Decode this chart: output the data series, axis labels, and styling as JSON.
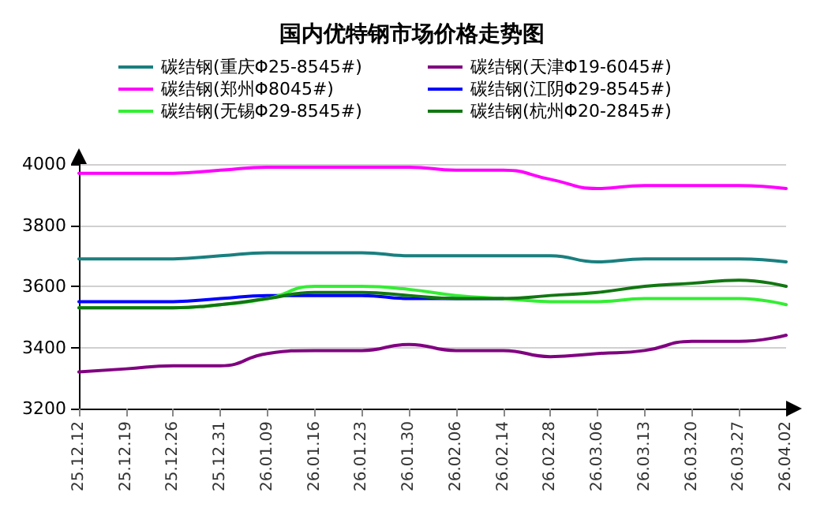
{
  "chart_data": {
    "type": "line",
    "title": "国内优特钢市场价格走势图",
    "categories": [
      "25.12.12",
      "25.12.19",
      "25.12.26",
      "25.12.31",
      "26.01.09",
      "26.01.16",
      "26.01.23",
      "26.01.30",
      "26.02.06",
      "26.02.14",
      "26.02.28",
      "26.03.06",
      "26.03.13",
      "26.03.20",
      "26.03.27",
      "26.04.02"
    ],
    "series": [
      {
        "name": "碳结钢(重庆Φ25-8545#)",
        "color": "#1a7f7f",
        "values": [
          3690,
          3690,
          3690,
          3700,
          3710,
          3710,
          3710,
          3700,
          3700,
          3700,
          3700,
          3680,
          3690,
          3690,
          3690,
          3680
        ]
      },
      {
        "name": "碳结钢(天津Φ19-6045#)",
        "color": "#800080",
        "values": [
          3320,
          3330,
          3340,
          3340,
          3380,
          3390,
          3390,
          3410,
          3390,
          3390,
          3370,
          3380,
          3390,
          3420,
          3420,
          3440
        ]
      },
      {
        "name": "碳结钢(郑州Φ8045#)",
        "color": "#ff00ff",
        "values": [
          3970,
          3970,
          3970,
          3980,
          3990,
          3990,
          3990,
          3990,
          3980,
          3980,
          3950,
          3920,
          3930,
          3930,
          3930,
          3920
        ]
      },
      {
        "name": "碳结钢(江阴Φ29-8545#)",
        "color": "#0000ff",
        "values": [
          3550,
          3550,
          3550,
          3560,
          3570,
          3570,
          3570,
          3560,
          3560,
          3560,
          null,
          null,
          null,
          null,
          null,
          null
        ]
      },
      {
        "name": "碳结钢(无锡Φ29-8545#)",
        "color": "#33ee33",
        "values": [
          3530,
          3530,
          3530,
          3540,
          3560,
          3600,
          3600,
          3590,
          3570,
          3560,
          3550,
          3550,
          3560,
          3560,
          3560,
          3540
        ]
      },
      {
        "name": "碳结钢(杭州Φ20-2845#)",
        "color": "#117711",
        "values": [
          3530,
          3530,
          3530,
          3540,
          3560,
          3580,
          3580,
          3570,
          3560,
          3560,
          3570,
          3580,
          3600,
          3610,
          3620,
          3600
        ]
      }
    ],
    "ylim": [
      3200,
      4000
    ],
    "yticks": [
      3200,
      3400,
      3600,
      3800,
      4000
    ],
    "grid": "y",
    "legend": "top",
    "marker": "none",
    "line_style": "solid"
  }
}
